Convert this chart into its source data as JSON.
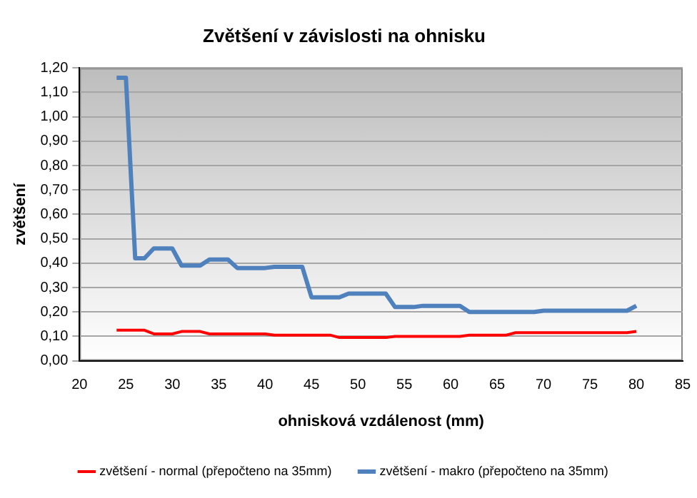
{
  "chart_data": {
    "type": "line",
    "title": "Zvětšení v závislosti na ohnisku",
    "xlabel": "ohnisková vzdálenost (mm)",
    "ylabel": "zvětšení",
    "xlim": [
      20,
      85
    ],
    "xticks": [
      20,
      25,
      30,
      35,
      40,
      45,
      50,
      55,
      60,
      65,
      70,
      75,
      80,
      85
    ],
    "ylim": [
      0,
      1.2
    ],
    "yticks": [
      {
        "value": 0,
        "label": "0,00"
      },
      {
        "value": 0.1,
        "label": "0,10"
      },
      {
        "value": 0.2,
        "label": "0,20"
      },
      {
        "value": 0.3,
        "label": "0,30"
      },
      {
        "value": 0.4,
        "label": "0,40"
      },
      {
        "value": 0.5,
        "label": "0,50"
      },
      {
        "value": 0.6,
        "label": "0,60"
      },
      {
        "value": 0.7,
        "label": "0,70"
      },
      {
        "value": 0.8,
        "label": "0,80"
      },
      {
        "value": 0.9,
        "label": "0,90"
      },
      {
        "value": 1.0,
        "label": "1,00"
      },
      {
        "value": 1.1,
        "label": "1,10"
      },
      {
        "value": 1.2,
        "label": "1,20"
      }
    ],
    "grid": "y",
    "legend": "bottom",
    "marker": "none",
    "line_style": "solid",
    "series": [
      {
        "name": "zvětšení - normal (přepočteno na 35mm)",
        "color": "#ff0000",
        "x": [
          24,
          27,
          28,
          30,
          31,
          33,
          34,
          40,
          41,
          47,
          48,
          53,
          54,
          61,
          62,
          66,
          67,
          79,
          80
        ],
        "values": [
          0.125,
          0.125,
          0.11,
          0.11,
          0.12,
          0.12,
          0.11,
          0.11,
          0.105,
          0.105,
          0.095,
          0.095,
          0.1,
          0.1,
          0.105,
          0.105,
          0.115,
          0.115,
          0.12
        ]
      },
      {
        "name": "zvětšení - makro (přepočteno na 35mm)",
        "color": "#4f81bd",
        "x": [
          24,
          25,
          26,
          27,
          28,
          30,
          31,
          33,
          34,
          36,
          37,
          40,
          41,
          44,
          45,
          48,
          49,
          53,
          54,
          56,
          57,
          61,
          62,
          69,
          70,
          79,
          80
        ],
        "values": [
          1.16,
          1.16,
          0.42,
          0.42,
          0.46,
          0.46,
          0.39,
          0.39,
          0.415,
          0.415,
          0.38,
          0.38,
          0.385,
          0.385,
          0.26,
          0.26,
          0.275,
          0.275,
          0.22,
          0.22,
          0.225,
          0.225,
          0.2,
          0.2,
          0.205,
          0.205,
          0.225
        ]
      }
    ]
  }
}
